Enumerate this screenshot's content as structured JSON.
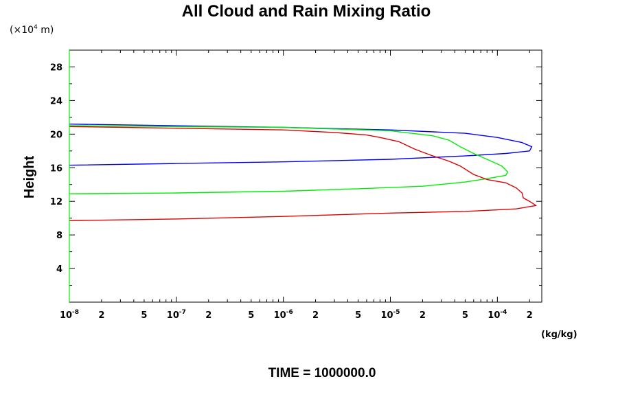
{
  "chart_data": {
    "type": "line",
    "title": "All Cloud and Rain Mixing Ratio",
    "ylabel": "Height",
    "y_scale_note": "(×10",
    "y_scale_exp": "4",
    "y_scale_unit": " m)",
    "x_unit": "(kg/kg)",
    "footer": "TIME = 1000000.0",
    "x_scale": "log",
    "xlim": [
      1e-08,
      0.00026
    ],
    "ylim": [
      0,
      30
    ],
    "grid": false,
    "y_ticks": [
      4,
      8,
      12,
      16,
      20,
      24,
      28
    ],
    "x_ticks": [
      {
        "value": 1e-08,
        "base": "10",
        "exp": "-8"
      },
      {
        "value": 2e-08,
        "base": "2",
        "exp": ""
      },
      {
        "value": 5e-08,
        "base": "5",
        "exp": ""
      },
      {
        "value": 1e-07,
        "base": "10",
        "exp": "-7"
      },
      {
        "value": 2e-07,
        "base": "2",
        "exp": ""
      },
      {
        "value": 5e-07,
        "base": "5",
        "exp": ""
      },
      {
        "value": 1e-06,
        "base": "10",
        "exp": "-6"
      },
      {
        "value": 2e-06,
        "base": "2",
        "exp": ""
      },
      {
        "value": 5e-06,
        "base": "5",
        "exp": ""
      },
      {
        "value": 1e-05,
        "base": "10",
        "exp": "-5"
      },
      {
        "value": 2e-05,
        "base": "2",
        "exp": ""
      },
      {
        "value": 5e-05,
        "base": "5",
        "exp": ""
      },
      {
        "value": 0.0001,
        "base": "10",
        "exp": "-4"
      },
      {
        "value": 0.0002,
        "base": "2",
        "exp": ""
      }
    ],
    "series": [
      {
        "color": "#0000ff",
        "points": [
          [
            1e-08,
            21.2
          ],
          [
            1e-06,
            20.8
          ],
          [
            1e-05,
            20.5
          ],
          [
            5e-05,
            20.1
          ],
          [
            0.0001,
            19.6
          ],
          [
            0.00017,
            19.0
          ],
          [
            0.00021,
            18.5
          ],
          [
            0.0002,
            18.0
          ],
          [
            0.00012,
            17.7
          ],
          [
            5e-05,
            17.4
          ],
          [
            1e-05,
            17.0
          ],
          [
            1e-06,
            16.7
          ],
          [
            1e-07,
            16.5
          ],
          [
            1e-08,
            16.3
          ]
        ]
      },
      {
        "color": "#00ee00",
        "points": [
          [
            1e-08,
            21.0
          ],
          [
            1e-06,
            20.8
          ],
          [
            1e-05,
            20.4
          ],
          [
            2.5e-05,
            19.8
          ],
          [
            3.5e-05,
            19.3
          ],
          [
            4.5e-05,
            18.5
          ],
          [
            6e-05,
            17.7
          ],
          [
            8e-05,
            17.0
          ],
          [
            0.00011,
            16.2
          ],
          [
            0.000125,
            15.5
          ],
          [
            0.00012,
            15.1
          ],
          [
            8e-05,
            14.7
          ],
          [
            5e-05,
            14.3
          ],
          [
            2e-05,
            13.8
          ],
          [
            5e-06,
            13.5
          ],
          [
            1e-06,
            13.2
          ],
          [
            1e-07,
            13.0
          ],
          [
            1e-08,
            12.9
          ]
        ]
      },
      {
        "color": "#dd0000",
        "points": [
          [
            1e-08,
            20.9
          ],
          [
            1e-06,
            20.5
          ],
          [
            3e-06,
            20.2
          ],
          [
            6e-06,
            19.9
          ],
          [
            8e-06,
            19.6
          ],
          [
            1.2e-05,
            19.1
          ],
          [
            1.7e-05,
            18.2
          ],
          [
            2.5e-05,
            17.4
          ],
          [
            3.5e-05,
            16.8
          ],
          [
            4.5e-05,
            16.2
          ],
          [
            6e-05,
            15.2
          ],
          [
            8e-05,
            14.6
          ],
          [
            0.00012,
            14.2
          ],
          [
            0.00015,
            13.6
          ],
          [
            0.00017,
            13.0
          ],
          [
            0.000175,
            12.4
          ],
          [
            0.0002,
            12.0
          ],
          [
            0.00023,
            11.5
          ],
          [
            0.00015,
            11.1
          ],
          [
            5e-05,
            10.8
          ],
          [
            1e-05,
            10.6
          ],
          [
            1e-06,
            10.2
          ],
          [
            1e-07,
            9.9
          ],
          [
            1e-08,
            9.7
          ]
        ]
      }
    ]
  }
}
